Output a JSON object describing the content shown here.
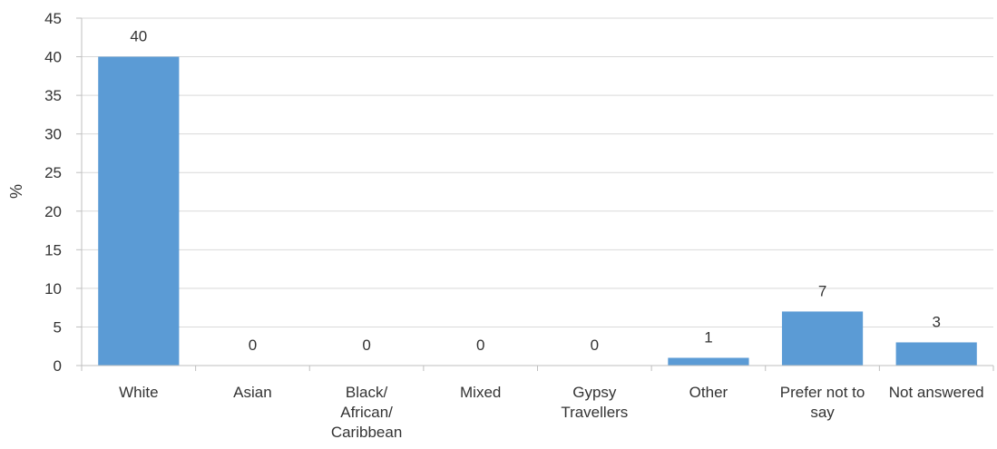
{
  "chart_data": {
    "type": "bar",
    "title": "",
    "xlabel": "",
    "ylabel": "%",
    "categories": [
      [
        "White"
      ],
      [
        "Asian"
      ],
      [
        "Black/",
        "African/",
        "Caribbean"
      ],
      [
        "Mixed"
      ],
      [
        "Gypsy",
        "Travellers"
      ],
      [
        "Other"
      ],
      [
        "Prefer not to",
        "say"
      ],
      [
        "Not answered"
      ]
    ],
    "values": [
      40,
      0,
      0,
      0,
      0,
      1,
      7,
      3
    ],
    "ylim": [
      0,
      45
    ],
    "yticks": [
      0,
      5,
      10,
      15,
      20,
      25,
      30,
      35,
      40,
      45
    ],
    "gridlines": true,
    "legend": "none",
    "colors": {
      "bar": "#5B9BD5",
      "grid": "#D9D9D9",
      "axis": "#BFBFBF",
      "text": "#333333"
    }
  }
}
